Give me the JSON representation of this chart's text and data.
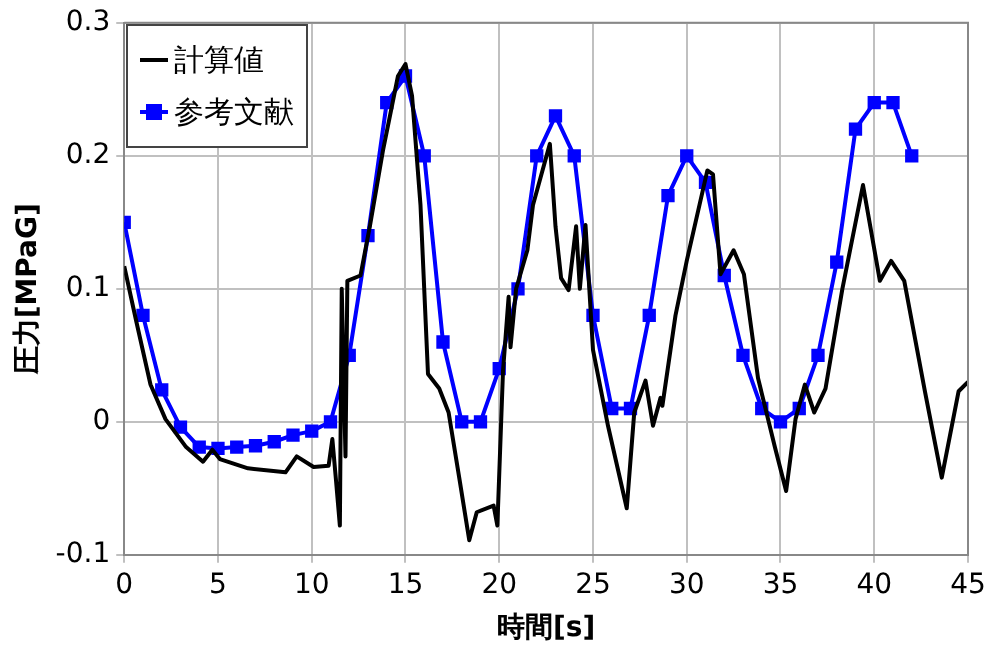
{
  "chart_data": {
    "type": "line",
    "xlabel": "時間[s]",
    "ylabel": "圧力[MPaG]",
    "xlim": [
      0,
      45
    ],
    "xticks": [
      0,
      5,
      10,
      15,
      20,
      25,
      30,
      35,
      40,
      45
    ],
    "ylim": [
      -0.1,
      0.3
    ],
    "yticks": [
      -0.1,
      0,
      0.1,
      0.2,
      0.3
    ],
    "grid": true,
    "legend": "top left",
    "series": [
      {
        "name": "計算値",
        "color": "#000000",
        "marker": "none",
        "x": [
          0,
          0.65,
          1.4,
          2.2,
          3.3,
          4.2,
          4.7,
          5.1,
          6.6,
          8.6,
          9.2,
          10.1,
          10.9,
          11.1,
          11.3,
          11.5,
          11.6,
          11.8,
          11.9,
          12.6,
          13.1,
          13.8,
          14.6,
          15,
          15.35,
          15.8,
          16.2,
          16.8,
          17.3,
          17.9,
          18.4,
          18.8,
          19.7,
          19.9,
          20.2,
          20.5,
          20.6,
          20.9,
          21.5,
          21.8,
          22.7,
          23,
          23.3,
          23.7,
          24.1,
          24.3,
          24.6,
          25,
          25.8,
          26.8,
          27.2,
          27.8,
          28.2,
          28.6,
          28.7,
          29.4,
          30,
          31.1,
          31.4,
          31.8,
          32.5,
          33.05,
          33.8,
          34.7,
          35.3,
          35.8,
          36.3,
          36.8,
          37.4,
          38.3,
          39.4,
          40.3,
          40.9,
          41.6,
          42.7,
          43.6,
          44.5,
          45
        ],
        "values": [
          0.117,
          0.075,
          0.028,
          0.002,
          -0.019,
          -0.03,
          -0.021,
          -0.028,
          -0.035,
          -0.038,
          -0.026,
          -0.034,
          -0.033,
          -0.013,
          -0.045,
          -0.078,
          0.1,
          -0.026,
          0.106,
          0.11,
          0.147,
          0.204,
          0.26,
          0.269,
          0.245,
          0.163,
          0.036,
          0.025,
          0.007,
          -0.045,
          -0.089,
          -0.068,
          -0.063,
          -0.078,
          0.038,
          0.094,
          0.056,
          0.1,
          0.129,
          0.163,
          0.209,
          0.147,
          0.108,
          0.099,
          0.147,
          0.1,
          0.148,
          0.054,
          -0.003,
          -0.065,
          0.007,
          0.031,
          -0.003,
          0.018,
          0.012,
          0.08,
          0.121,
          0.189,
          0.186,
          0.111,
          0.129,
          0.111,
          0.033,
          -0.019,
          -0.052,
          0.002,
          0.028,
          0.007,
          0.025,
          0.1,
          0.178,
          0.106,
          0.121,
          0.106,
          0.023,
          -0.042,
          0.023,
          0.03
        ]
      },
      {
        "name": "参考文献",
        "color": "#0000ff",
        "marker": "square",
        "x": [
          0,
          1,
          2,
          3,
          4,
          5,
          6,
          7,
          8,
          9,
          10,
          11,
          12,
          13,
          14,
          15,
          16,
          17,
          18,
          19,
          20,
          21,
          22,
          23,
          24,
          25,
          26,
          27,
          28,
          29,
          30,
          31,
          32,
          33,
          34,
          35,
          36,
          37,
          38,
          39,
          40,
          41,
          42
        ],
        "values": [
          0.15,
          0.08,
          0.024,
          -0.004,
          -0.019,
          -0.02,
          -0.019,
          -0.018,
          -0.015,
          -0.01,
          -0.007,
          0,
          0.05,
          0.14,
          0.24,
          0.26,
          0.2,
          0.06,
          0,
          0,
          0.04,
          0.1,
          0.2,
          0.23,
          0.2,
          0.08,
          0.01,
          0.01,
          0.08,
          0.17,
          0.2,
          0.18,
          0.11,
          0.05,
          0.01,
          0,
          0.01,
          0.05,
          0.12,
          0.22,
          0.24,
          0.24,
          0.2
        ]
      }
    ]
  }
}
